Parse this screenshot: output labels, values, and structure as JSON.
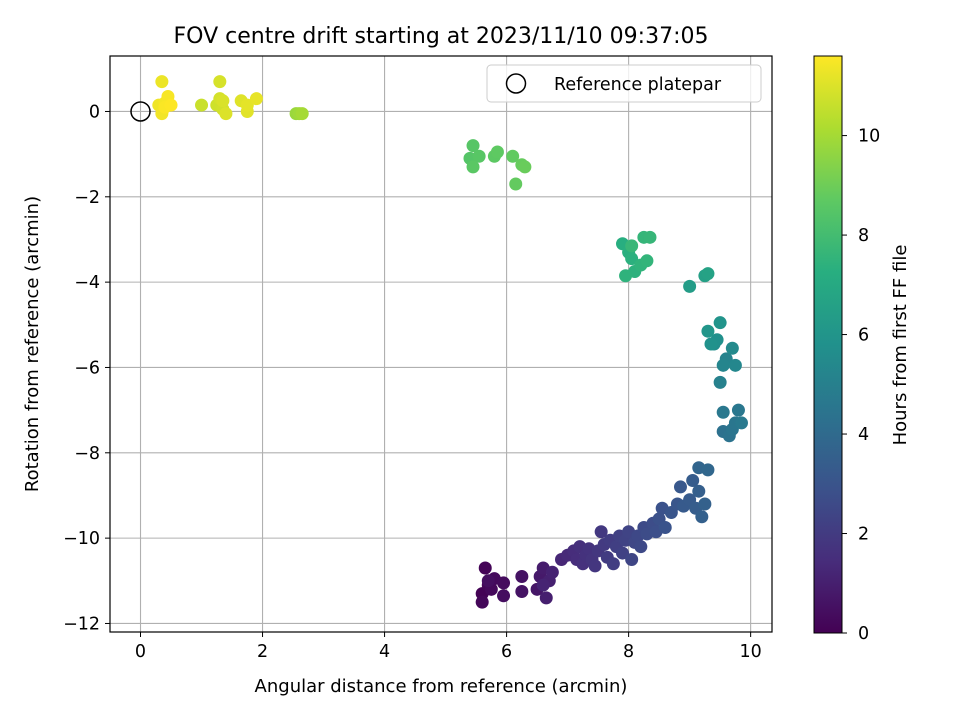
{
  "chart_data": {
    "type": "scatter",
    "title": "FOV centre drift starting at 2023/11/10 09:37:05",
    "xlabel": "Angular distance from reference (arcmin)",
    "ylabel": "Rotation from reference (arcmin)",
    "xlim": [
      -0.5,
      10.35
    ],
    "ylim": [
      -12.2,
      1.3
    ],
    "x_ticks": [
      0,
      2,
      4,
      6,
      8,
      10
    ],
    "y_ticks": [
      0,
      -2,
      -4,
      -6,
      -8,
      -10,
      -12
    ],
    "x_tick_labels": [
      "0",
      "2",
      "4",
      "6",
      "8",
      "10"
    ],
    "y_tick_labels": [
      "0",
      "−2",
      "−4",
      "−6",
      "−8",
      "−10",
      "−12"
    ],
    "grid": true,
    "legend": {
      "placement": "top-right",
      "entries": [
        "Reference platepar"
      ]
    },
    "reference_point": {
      "x": 0,
      "y": 0
    },
    "colorbar": {
      "label": "Hours from first FF file",
      "range": [
        0,
        11.6
      ],
      "ticks": [
        0,
        2,
        4,
        6,
        8,
        10
      ],
      "tick_labels": [
        "0",
        "2",
        "4",
        "6",
        "8",
        "10"
      ],
      "colormap": "viridis"
    },
    "series": [
      {
        "points": [
          [
            5.6,
            -11.3,
            0.05
          ],
          [
            5.65,
            -10.7,
            0.1
          ],
          [
            5.7,
            -11.1,
            0.15
          ],
          [
            5.6,
            -11.5,
            0.2
          ],
          [
            5.75,
            -11.2,
            0.25
          ],
          [
            5.8,
            -10.95,
            0.3
          ],
          [
            5.95,
            -11.05,
            0.35
          ],
          [
            5.95,
            -11.35,
            0.4
          ],
          [
            5.7,
            -11.0,
            0.45
          ],
          [
            6.25,
            -10.9,
            0.55
          ],
          [
            6.25,
            -11.25,
            0.6
          ],
          [
            6.5,
            -11.2,
            0.7
          ],
          [
            6.55,
            -10.9,
            0.8
          ],
          [
            6.6,
            -10.7,
            0.9
          ],
          [
            6.65,
            -11.4,
            1.0
          ],
          [
            6.7,
            -11.0,
            1.05
          ],
          [
            6.75,
            -10.8,
            1.1
          ],
          [
            6.6,
            -11.1,
            1.15
          ],
          [
            6.9,
            -10.5,
            1.25
          ],
          [
            7.0,
            -10.4,
            1.35
          ],
          [
            7.1,
            -10.3,
            1.45
          ],
          [
            7.15,
            -10.5,
            1.5
          ],
          [
            7.2,
            -10.2,
            1.55
          ],
          [
            7.25,
            -10.6,
            1.6
          ],
          [
            7.3,
            -10.4,
            1.65
          ],
          [
            7.35,
            -10.25,
            1.7
          ],
          [
            7.4,
            -10.5,
            1.75
          ],
          [
            7.45,
            -10.65,
            1.8
          ],
          [
            7.5,
            -10.3,
            1.85
          ],
          [
            7.55,
            -9.85,
            1.9
          ],
          [
            7.6,
            -10.15,
            1.95
          ],
          [
            7.65,
            -10.45,
            2.0
          ],
          [
            7.7,
            -10.05,
            2.05
          ],
          [
            7.75,
            -10.6,
            2.1
          ],
          [
            7.8,
            -10.2,
            2.15
          ],
          [
            7.85,
            -9.95,
            2.2
          ],
          [
            7.9,
            -10.35,
            2.25
          ],
          [
            7.95,
            -10.05,
            2.3
          ],
          [
            8.0,
            -9.85,
            2.35
          ],
          [
            8.05,
            -10.5,
            2.4
          ],
          [
            8.1,
            -10.1,
            2.45
          ],
          [
            8.15,
            -9.95,
            2.5
          ],
          [
            8.2,
            -10.2,
            2.55
          ],
          [
            8.25,
            -9.75,
            2.6
          ],
          [
            8.3,
            -9.9,
            2.65
          ],
          [
            8.4,
            -9.65,
            2.7
          ],
          [
            8.45,
            -9.85,
            2.8
          ],
          [
            8.5,
            -9.55,
            2.85
          ],
          [
            8.55,
            -9.3,
            2.9
          ],
          [
            8.6,
            -9.75,
            2.95
          ],
          [
            8.7,
            -9.4,
            3.05
          ],
          [
            8.8,
            -9.2,
            3.1
          ],
          [
            8.85,
            -8.8,
            3.15
          ],
          [
            8.9,
            -9.25,
            3.25
          ],
          [
            9.0,
            -9.1,
            3.3
          ],
          [
            9.05,
            -8.65,
            3.35
          ],
          [
            9.1,
            -9.3,
            3.4
          ],
          [
            9.15,
            -8.9,
            3.5
          ],
          [
            9.2,
            -9.5,
            3.55
          ],
          [
            9.25,
            -9.2,
            3.6
          ],
          [
            9.15,
            -8.35,
            3.75
          ],
          [
            9.3,
            -8.4,
            3.85
          ],
          [
            9.55,
            -7.5,
            4.3
          ],
          [
            9.65,
            -7.6,
            4.4
          ],
          [
            9.7,
            -7.45,
            4.5
          ],
          [
            9.75,
            -7.3,
            4.55
          ],
          [
            9.8,
            -7.0,
            4.6
          ],
          [
            9.55,
            -7.05,
            4.65
          ],
          [
            9.85,
            -7.3,
            4.7
          ],
          [
            9.5,
            -6.35,
            5.05
          ],
          [
            9.6,
            -5.8,
            5.15
          ],
          [
            9.55,
            -5.95,
            5.25
          ],
          [
            9.75,
            -5.95,
            5.35
          ],
          [
            9.7,
            -5.55,
            5.45
          ],
          [
            9.4,
            -5.45,
            5.65
          ],
          [
            9.45,
            -5.35,
            5.75
          ],
          [
            9.35,
            -5.45,
            5.85
          ],
          [
            9.5,
            -4.95,
            5.95
          ],
          [
            9.3,
            -5.15,
            6.05
          ],
          [
            9.0,
            -4.1,
            6.35
          ],
          [
            9.25,
            -3.85,
            6.55
          ],
          [
            9.3,
            -3.8,
            6.65
          ],
          [
            7.9,
            -3.1,
            7.25
          ],
          [
            8.0,
            -3.3,
            7.3
          ],
          [
            8.05,
            -3.45,
            7.35
          ],
          [
            8.1,
            -3.75,
            7.4
          ],
          [
            7.95,
            -3.85,
            7.45
          ],
          [
            8.2,
            -3.6,
            7.5
          ],
          [
            8.3,
            -3.5,
            7.55
          ],
          [
            8.25,
            -2.95,
            7.6
          ],
          [
            8.35,
            -2.95,
            7.65
          ],
          [
            8.05,
            -3.15,
            7.7
          ],
          [
            5.4,
            -1.1,
            8.45
          ],
          [
            5.45,
            -0.8,
            8.5
          ],
          [
            5.55,
            -1.05,
            8.55
          ],
          [
            5.45,
            -1.3,
            8.6
          ],
          [
            5.8,
            -1.05,
            8.65
          ],
          [
            5.85,
            -0.95,
            8.7
          ],
          [
            6.1,
            -1.05,
            8.75
          ],
          [
            6.15,
            -1.7,
            8.8
          ],
          [
            6.25,
            -1.25,
            8.85
          ],
          [
            6.3,
            -1.3,
            8.9
          ],
          [
            2.55,
            -0.05,
            9.8
          ],
          [
            2.6,
            -0.05,
            9.9
          ],
          [
            2.65,
            -0.05,
            10.0
          ],
          [
            1.0,
            0.15,
            10.65
          ],
          [
            1.25,
            0.15,
            10.75
          ],
          [
            1.35,
            0.05,
            10.8
          ],
          [
            1.3,
            0.3,
            10.85
          ],
          [
            1.3,
            0.7,
            10.9
          ],
          [
            1.35,
            0.25,
            10.95
          ],
          [
            1.4,
            -0.05,
            11.0
          ],
          [
            1.65,
            0.25,
            11.05
          ],
          [
            1.75,
            0.0,
            11.1
          ],
          [
            1.75,
            0.15,
            11.15
          ],
          [
            1.9,
            0.3,
            11.2
          ],
          [
            0.35,
            0.7,
            11.3
          ],
          [
            0.3,
            0.15,
            11.35
          ],
          [
            0.35,
            -0.05,
            11.4
          ],
          [
            0.4,
            0.2,
            11.45
          ],
          [
            0.45,
            0.35,
            11.5
          ],
          [
            0.4,
            0.1,
            11.55
          ],
          [
            0.5,
            0.15,
            11.6
          ]
        ]
      }
    ]
  }
}
